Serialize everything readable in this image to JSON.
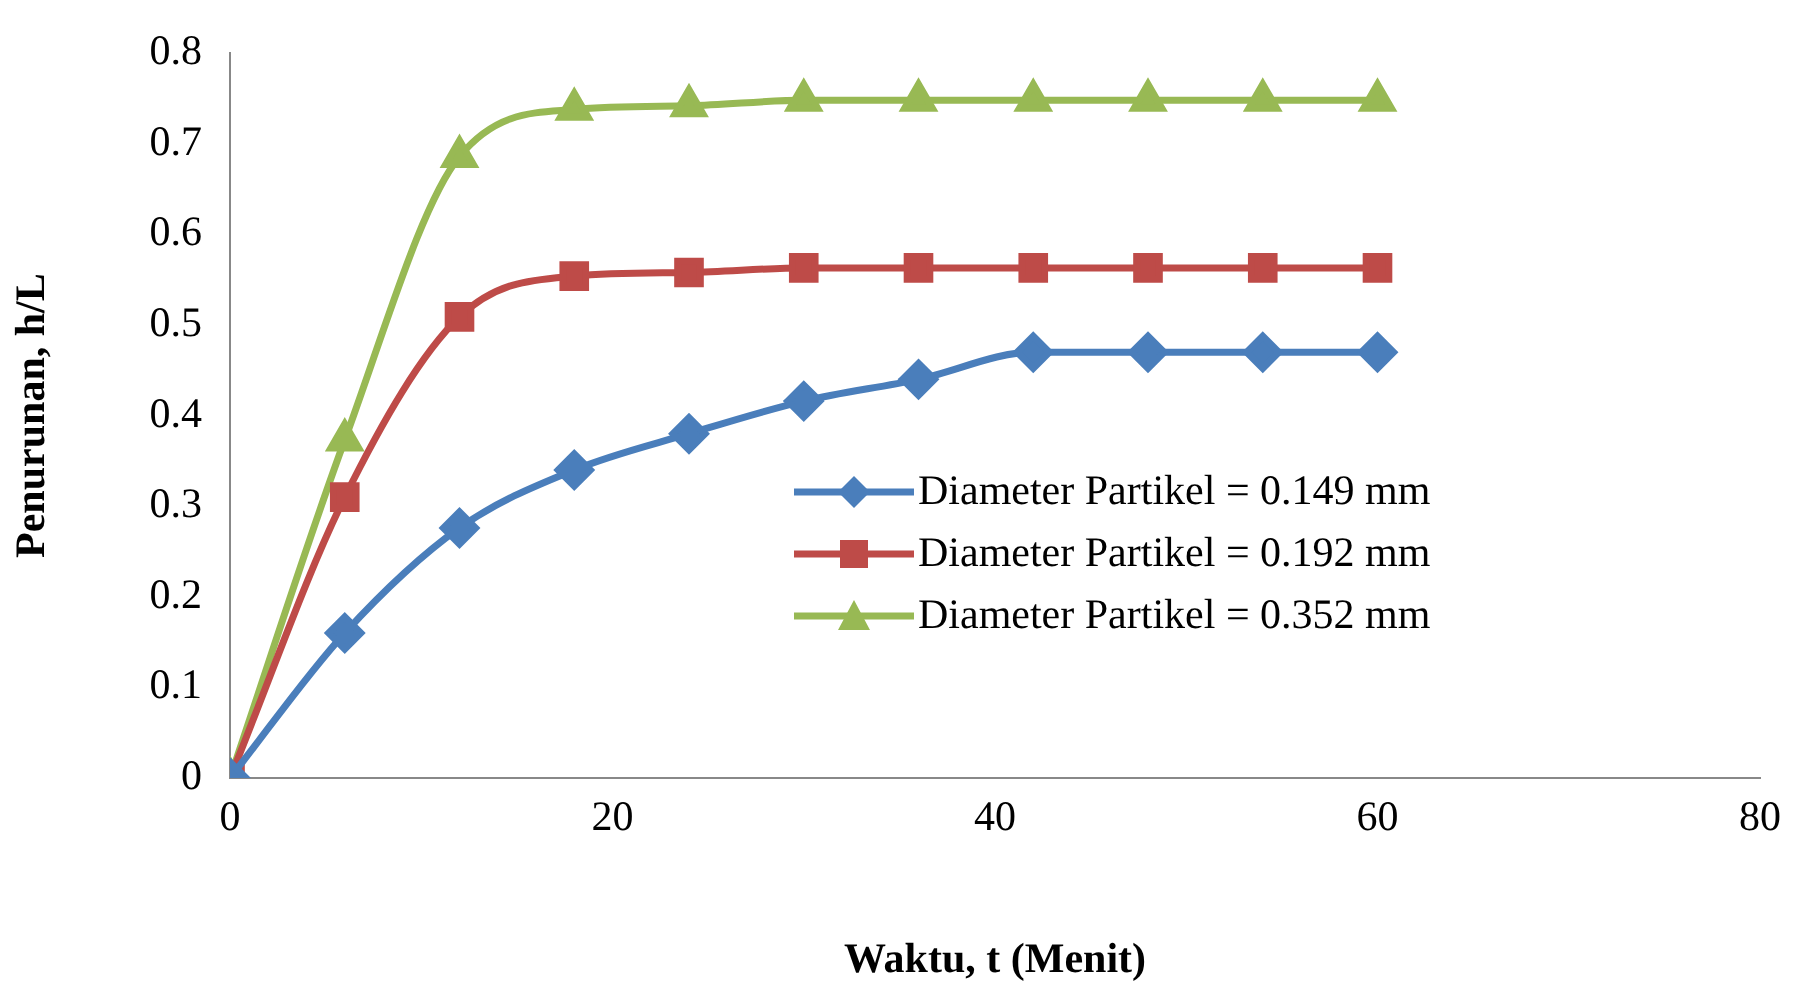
{
  "chart_data": {
    "type": "line",
    "xlabel": "Waktu, t (Menit)",
    "ylabel": "Penurunan, h/L",
    "xlim": [
      0,
      80
    ],
    "xticks": [
      0,
      20,
      40,
      60,
      80
    ],
    "ylim": [
      0,
      0.8
    ],
    "yticks": [
      0,
      0.1,
      0.2,
      0.3,
      0.4,
      0.5,
      0.6,
      0.7,
      0.8
    ],
    "grid": false,
    "legend": "right",
    "line_style": "solid",
    "x": [
      0,
      6,
      12,
      18,
      24,
      30,
      36,
      42,
      48,
      54,
      60
    ],
    "series": [
      {
        "name": "Diameter Partikel = 0.149 mm",
        "color": "#4a7ebb",
        "marker": "diamond",
        "values": [
          0,
          0.16,
          0.276,
          0.34,
          0.38,
          0.416,
          0.44,
          0.47,
          0.47,
          0.47,
          0.47
        ]
      },
      {
        "name": "Diameter Partikel = 0.192 mm",
        "color": "#be4b48",
        "marker": "square",
        "values": [
          0,
          0.31,
          0.509,
          0.554,
          0.558,
          0.563,
          0.563,
          0.563,
          0.563,
          0.563,
          0.563
        ]
      },
      {
        "name": "Diameter Partikel = 0.352 mm",
        "color": "#98b954",
        "marker": "triangle",
        "values": [
          0,
          0.373,
          0.686,
          0.738,
          0.742,
          0.748,
          0.748,
          0.748,
          0.748,
          0.748,
          0.748
        ]
      }
    ]
  }
}
